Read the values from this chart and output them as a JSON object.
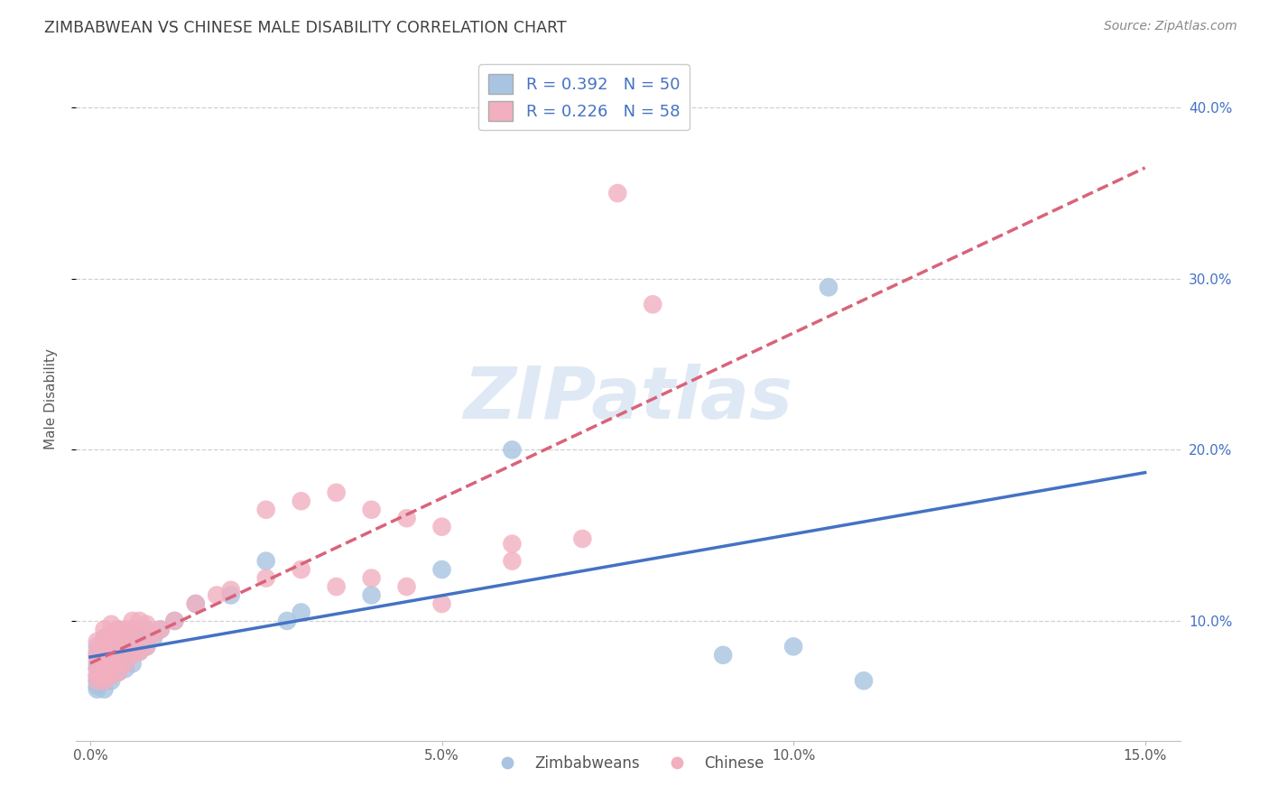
{
  "title": "ZIMBABWEAN VS CHINESE MALE DISABILITY CORRELATION CHART",
  "source": "Source: ZipAtlas.com",
  "ylabel": "Male Disability",
  "xlim": [
    -0.002,
    0.155
  ],
  "ylim": [
    0.03,
    0.43
  ],
  "ytick_labels": [
    "10.0%",
    "20.0%",
    "30.0%",
    "40.0%"
  ],
  "ytick_values": [
    0.1,
    0.2,
    0.3,
    0.4
  ],
  "xtick_labels": [
    "0.0%",
    "5.0%",
    "10.0%",
    "15.0%"
  ],
  "xtick_values": [
    0.0,
    0.05,
    0.1,
    0.15
  ],
  "legend_R_blue": "R = 0.392   N = 50",
  "legend_R_pink": "R = 0.226   N = 58",
  "blue_color": "#a8c4e0",
  "pink_color": "#f2afc0",
  "blue_line_color": "#4472c4",
  "pink_line_color": "#d9637a",
  "title_color": "#404040",
  "tick_color_blue": "#4472c4",
  "watermark_color": "#c5d8ee",
  "background_color": "#ffffff",
  "grid_color": "#d0d0d0",
  "zim_x": [
    0.001,
    0.001,
    0.001,
    0.001,
    0.001,
    0.001,
    0.001,
    0.001,
    0.002,
    0.002,
    0.002,
    0.002,
    0.002,
    0.002,
    0.002,
    0.003,
    0.003,
    0.003,
    0.003,
    0.003,
    0.003,
    0.004,
    0.004,
    0.004,
    0.004,
    0.005,
    0.005,
    0.005,
    0.006,
    0.006,
    0.006,
    0.007,
    0.007,
    0.008,
    0.008,
    0.009,
    0.01,
    0.012,
    0.015,
    0.02,
    0.025,
    0.028,
    0.03,
    0.04,
    0.05,
    0.06,
    0.09,
    0.1,
    0.105,
    0.11
  ],
  "zim_y": [
    0.06,
    0.062,
    0.065,
    0.068,
    0.072,
    0.075,
    0.08,
    0.085,
    0.06,
    0.065,
    0.068,
    0.072,
    0.078,
    0.082,
    0.09,
    0.065,
    0.068,
    0.072,
    0.078,
    0.085,
    0.092,
    0.07,
    0.075,
    0.082,
    0.095,
    0.072,
    0.08,
    0.09,
    0.075,
    0.085,
    0.095,
    0.082,
    0.092,
    0.085,
    0.095,
    0.09,
    0.095,
    0.1,
    0.11,
    0.115,
    0.135,
    0.1,
    0.105,
    0.115,
    0.13,
    0.2,
    0.08,
    0.085,
    0.295,
    0.065
  ],
  "chi_x": [
    0.001,
    0.001,
    0.001,
    0.001,
    0.001,
    0.001,
    0.002,
    0.002,
    0.002,
    0.002,
    0.002,
    0.002,
    0.002,
    0.003,
    0.003,
    0.003,
    0.003,
    0.003,
    0.003,
    0.004,
    0.004,
    0.004,
    0.004,
    0.004,
    0.005,
    0.005,
    0.005,
    0.006,
    0.006,
    0.006,
    0.007,
    0.007,
    0.007,
    0.008,
    0.008,
    0.009,
    0.01,
    0.012,
    0.015,
    0.018,
    0.02,
    0.025,
    0.03,
    0.035,
    0.04,
    0.045,
    0.05,
    0.06,
    0.05,
    0.06,
    0.07,
    0.075,
    0.08,
    0.025,
    0.03,
    0.035,
    0.04,
    0.045
  ],
  "chi_y": [
    0.065,
    0.068,
    0.072,
    0.078,
    0.082,
    0.088,
    0.065,
    0.068,
    0.072,
    0.078,
    0.085,
    0.09,
    0.095,
    0.068,
    0.072,
    0.078,
    0.085,
    0.092,
    0.098,
    0.07,
    0.075,
    0.082,
    0.09,
    0.095,
    0.075,
    0.085,
    0.095,
    0.08,
    0.09,
    0.1,
    0.082,
    0.092,
    0.1,
    0.085,
    0.098,
    0.092,
    0.095,
    0.1,
    0.11,
    0.115,
    0.118,
    0.125,
    0.13,
    0.12,
    0.125,
    0.12,
    0.11,
    0.135,
    0.155,
    0.145,
    0.148,
    0.35,
    0.285,
    0.165,
    0.17,
    0.175,
    0.165,
    0.16
  ]
}
